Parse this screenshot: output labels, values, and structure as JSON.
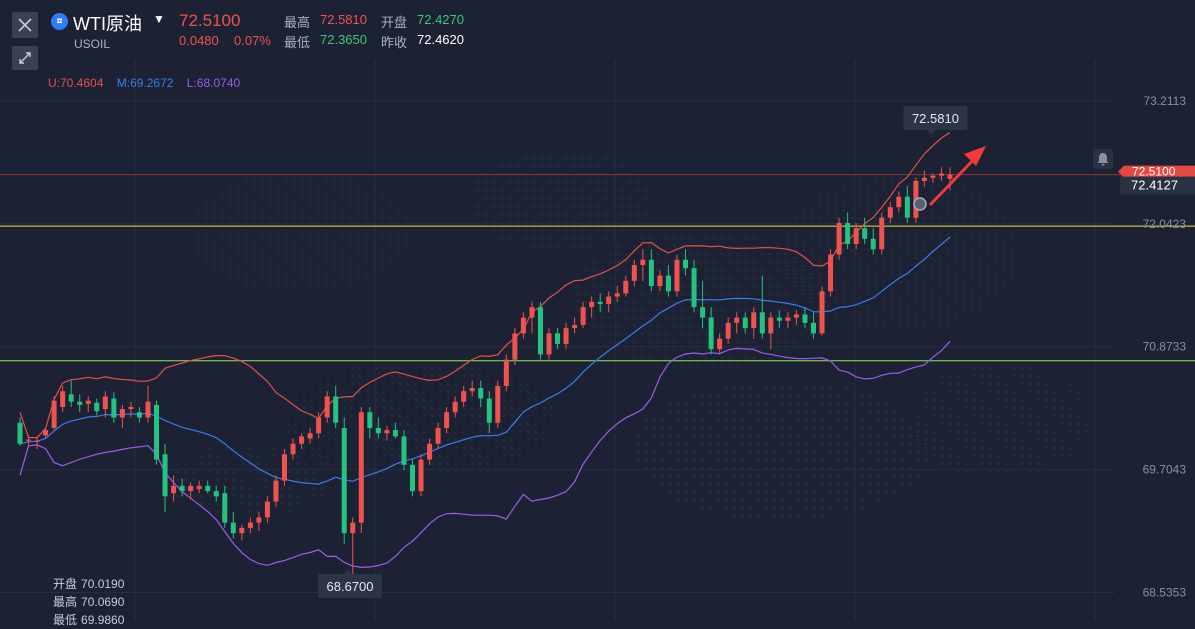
{
  "header": {
    "symbol_name": "WTI原油",
    "symbol_code": "USOIL",
    "symbol_icon": "currency-icon",
    "last_price": "72.5100",
    "change": "0.0480",
    "change_pct": "0.07%",
    "high_label": "最高",
    "high_value": "72.5810",
    "open_label": "开盘",
    "open_value": "72.4270",
    "low_label": "最低",
    "low_value": "72.3650",
    "prev_close_label": "昨收",
    "prev_close_value": "72.4620"
  },
  "boll": {
    "upper": "U:70.4604",
    "mid": "M:69.2672",
    "lower": "L:68.0740"
  },
  "ohl_panel": {
    "open_label": "开盘",
    "open_value": "70.0190",
    "high_label": "最高",
    "high_value": "70.0690",
    "low_label": "最低",
    "low_value": "69.9860"
  },
  "colors": {
    "background": "#1c2233",
    "up": "#ef5350",
    "down": "#26c281",
    "upper_band": "#e0524a",
    "mid_band": "#3f7be8",
    "lower_band": "#9b5de5",
    "hline_yellow": "#e6e24a",
    "hline_green": "#8fe65a"
  },
  "chart_data": {
    "type": "candlestick",
    "y_ticks": [
      "73.2113",
      "72.0423",
      "70.8733",
      "69.7043",
      "68.5353"
    ],
    "ylim": [
      68.35,
      73.6
    ],
    "current_price_label": "72.5100",
    "current_price": 72.51,
    "crosshair_label": "72.4127",
    "high_callout": "72.5810",
    "low_callout": "68.6700",
    "hlines": [
      72.02,
      70.74
    ],
    "candles": [
      [
        70.15,
        70.2,
        69.93,
        69.95
      ],
      [
        69.98,
        70.03,
        69.92,
        69.99
      ],
      [
        69.97,
        70.02,
        69.9,
        69.98
      ],
      [
        70.03,
        70.09,
        70.0,
        70.08
      ],
      [
        70.1,
        70.4,
        70.08,
        70.36
      ],
      [
        70.3,
        70.5,
        70.25,
        70.45
      ],
      [
        70.42,
        70.55,
        70.3,
        70.35
      ],
      [
        70.35,
        70.42,
        70.25,
        70.32
      ],
      [
        70.33,
        70.4,
        70.25,
        70.36
      ],
      [
        70.34,
        70.38,
        70.22,
        70.26
      ],
      [
        70.28,
        70.45,
        70.2,
        70.4
      ],
      [
        70.38,
        70.44,
        70.15,
        70.2
      ],
      [
        70.2,
        70.32,
        70.1,
        70.28
      ],
      [
        70.28,
        70.35,
        70.2,
        70.3
      ],
      [
        70.25,
        70.3,
        70.15,
        70.2
      ],
      [
        70.2,
        70.5,
        70.15,
        70.35
      ],
      [
        70.32,
        70.36,
        69.75,
        69.8
      ],
      [
        69.85,
        69.95,
        69.3,
        69.45
      ],
      [
        69.48,
        69.65,
        69.4,
        69.55
      ],
      [
        69.55,
        69.62,
        69.45,
        69.5
      ],
      [
        69.5,
        69.58,
        69.42,
        69.55
      ],
      [
        69.52,
        69.6,
        69.48,
        69.55
      ],
      [
        69.55,
        69.6,
        69.48,
        69.5
      ],
      [
        69.5,
        69.55,
        69.4,
        69.45
      ],
      [
        69.48,
        69.55,
        69.15,
        69.2
      ],
      [
        69.2,
        69.3,
        69.05,
        69.1
      ],
      [
        69.1,
        69.18,
        69.03,
        69.15
      ],
      [
        69.15,
        69.25,
        69.1,
        69.2
      ],
      [
        69.2,
        69.3,
        69.12,
        69.25
      ],
      [
        69.25,
        69.45,
        69.2,
        69.4
      ],
      [
        69.4,
        69.65,
        69.35,
        69.6
      ],
      [
        69.6,
        69.9,
        69.55,
        69.85
      ],
      [
        69.85,
        70.0,
        69.8,
        69.95
      ],
      [
        69.95,
        70.05,
        69.9,
        70.02
      ],
      [
        70.0,
        70.1,
        69.95,
        70.05
      ],
      [
        70.05,
        70.25,
        70.0,
        70.2
      ],
      [
        70.2,
        70.45,
        70.15,
        70.4
      ],
      [
        70.4,
        70.5,
        70.1,
        70.15
      ],
      [
        70.1,
        70.2,
        69.0,
        69.1
      ],
      [
        69.1,
        69.25,
        68.67,
        69.2
      ],
      [
        69.2,
        70.3,
        69.1,
        70.25
      ],
      [
        70.25,
        70.3,
        70.0,
        70.1
      ],
      [
        70.1,
        70.2,
        70.0,
        70.05
      ],
      [
        70.05,
        70.12,
        69.98,
        70.08
      ],
      [
        70.08,
        70.15,
        70.0,
        70.02
      ],
      [
        70.02,
        70.08,
        69.7,
        69.75
      ],
      [
        69.75,
        69.8,
        69.45,
        69.5
      ],
      [
        69.5,
        69.85,
        69.45,
        69.8
      ],
      [
        69.8,
        70.0,
        69.75,
        69.95
      ],
      [
        69.95,
        70.15,
        69.9,
        70.1
      ],
      [
        70.1,
        70.3,
        70.05,
        70.25
      ],
      [
        70.25,
        70.4,
        70.2,
        70.35
      ],
      [
        70.35,
        70.5,
        70.3,
        70.45
      ],
      [
        70.45,
        70.55,
        70.4,
        70.48
      ],
      [
        70.48,
        70.55,
        70.3,
        70.38
      ],
      [
        70.38,
        70.45,
        70.05,
        70.15
      ],
      [
        70.15,
        70.55,
        70.1,
        70.5
      ],
      [
        70.5,
        70.8,
        70.45,
        70.75
      ],
      [
        70.75,
        71.05,
        70.7,
        71.0
      ],
      [
        71.0,
        71.2,
        70.95,
        71.15
      ],
      [
        71.15,
        71.3,
        71.0,
        71.25
      ],
      [
        71.25,
        71.3,
        70.75,
        70.8
      ],
      [
        70.8,
        71.05,
        70.75,
        71.0
      ],
      [
        71.0,
        71.05,
        70.85,
        70.9
      ],
      [
        70.9,
        71.1,
        70.85,
        71.05
      ],
      [
        71.05,
        71.15,
        71.0,
        71.08
      ],
      [
        71.08,
        71.3,
        71.05,
        71.25
      ],
      [
        71.25,
        71.35,
        71.15,
        71.3
      ],
      [
        71.3,
        71.38,
        71.2,
        71.28
      ],
      [
        71.28,
        71.4,
        71.2,
        71.35
      ],
      [
        71.35,
        71.45,
        71.3,
        71.38
      ],
      [
        71.38,
        71.55,
        71.35,
        71.5
      ],
      [
        71.5,
        71.7,
        71.45,
        71.65
      ],
      [
        71.65,
        71.8,
        71.5,
        71.7
      ],
      [
        71.7,
        71.8,
        71.4,
        71.45
      ],
      [
        71.45,
        71.6,
        71.4,
        71.55
      ],
      [
        71.55,
        71.65,
        71.35,
        71.4
      ],
      [
        71.4,
        71.75,
        71.35,
        71.7
      ],
      [
        71.7,
        71.8,
        71.55,
        71.62
      ],
      [
        71.62,
        71.7,
        71.2,
        71.25
      ],
      [
        71.25,
        71.5,
        71.05,
        71.15
      ],
      [
        71.15,
        71.25,
        70.8,
        70.85
      ],
      [
        70.85,
        71.0,
        70.8,
        70.95
      ],
      [
        70.95,
        71.15,
        70.9,
        71.1
      ],
      [
        71.1,
        71.2,
        71.0,
        71.15
      ],
      [
        71.15,
        71.2,
        71.0,
        71.05
      ],
      [
        71.05,
        71.25,
        70.95,
        71.2
      ],
      [
        71.2,
        71.55,
        70.95,
        71.0
      ],
      [
        71.0,
        71.2,
        70.85,
        71.15
      ],
      [
        71.15,
        71.22,
        71.05,
        71.12
      ],
      [
        71.12,
        71.2,
        71.05,
        71.15
      ],
      [
        71.15,
        71.22,
        71.08,
        71.18
      ],
      [
        71.18,
        71.25,
        71.05,
        71.1
      ],
      [
        71.1,
        71.2,
        70.95,
        71.0
      ],
      [
        71.0,
        71.45,
        70.98,
        71.4
      ],
      [
        71.4,
        71.8,
        71.35,
        71.75
      ],
      [
        71.75,
        72.1,
        71.7,
        72.05
      ],
      [
        72.05,
        72.15,
        71.8,
        71.85
      ],
      [
        71.85,
        72.05,
        71.8,
        72.0
      ],
      [
        72.0,
        72.1,
        71.85,
        71.9
      ],
      [
        71.9,
        72.0,
        71.75,
        71.8
      ],
      [
        71.8,
        72.15,
        71.75,
        72.1
      ],
      [
        72.1,
        72.25,
        72.05,
        72.2
      ],
      [
        72.2,
        72.35,
        72.15,
        72.3
      ],
      [
        72.3,
        72.4,
        72.05,
        72.1
      ],
      [
        72.1,
        72.48,
        72.05,
        72.45
      ],
      [
        72.45,
        72.55,
        72.4,
        72.48
      ],
      [
        72.48,
        72.52,
        72.43,
        72.5
      ],
      [
        72.5,
        72.58,
        72.45,
        72.52
      ],
      [
        72.47,
        72.58,
        72.36,
        72.51
      ]
    ]
  }
}
